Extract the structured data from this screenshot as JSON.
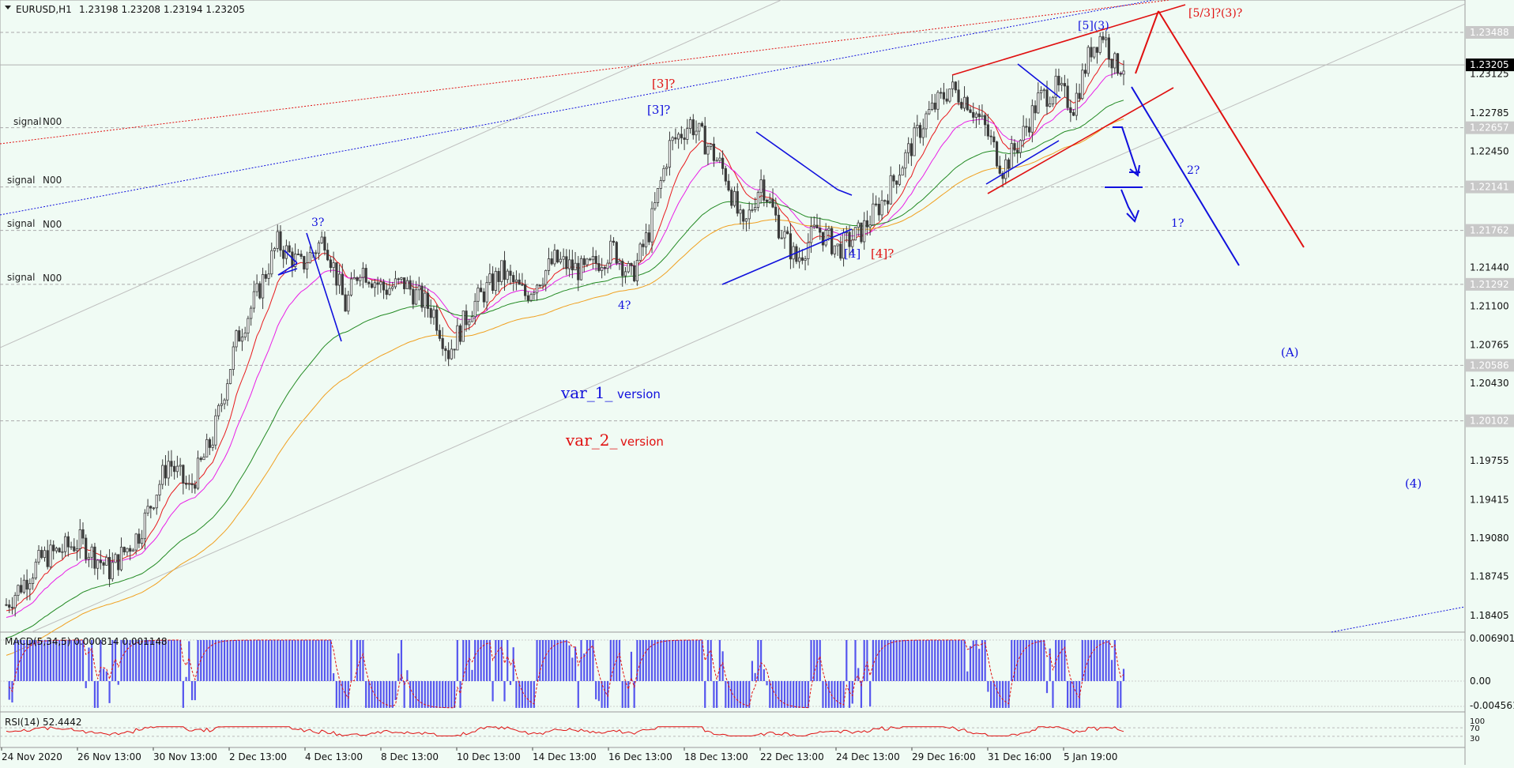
{
  "header": {
    "symbol": "EURUSD,H1",
    "ohlc": "1.23198 1.23208 1.23194 1.23205"
  },
  "colors": {
    "background": "#f0fbf4",
    "candle": "#3a3a3a",
    "ema_red": "#e8191c",
    "ema_magenta": "#e91ee6",
    "ema_orange": "#f0a020",
    "ema_green": "#238a23",
    "wave_blue": "#1010dd",
    "wave_red": "#e01010",
    "macd_hist": "#5555ee",
    "macd_signal": "#e01010",
    "rsi": "#e01010"
  },
  "signals": [
    {
      "label": "signal",
      "value": "N00"
    },
    {
      "label": "signal",
      "value": "N00"
    },
    {
      "label": "signal",
      "value": "N00"
    },
    {
      "label": "signal",
      "value": "N00"
    }
  ],
  "price_labels": [
    "1.23488",
    "1.23205",
    "1.23125",
    "1.22785",
    "1.22657",
    "1.22450",
    "1.22141",
    "1.21762",
    "1.21440",
    "1.21292",
    "1.21100",
    "1.20765",
    "1.20586",
    "1.20430",
    "1.20102",
    "1.19755",
    "1.19415",
    "1.19080",
    "1.18745",
    "1.18405"
  ],
  "current_price": "1.23205",
  "annotations": [
    {
      "text": "[5](3)",
      "color": "blue"
    },
    {
      "text": "[5/3]?(3)?",
      "color": "red"
    },
    {
      "text": "[3]?",
      "color": "red"
    },
    {
      "text": "[3]?",
      "color": "blue"
    },
    {
      "text": "3?",
      "color": "blue"
    },
    {
      "text": "4?",
      "color": "blue"
    },
    {
      "text": "[4]",
      "color": "blue"
    },
    {
      "text": "[4]?",
      "color": "red"
    },
    {
      "text": "2?",
      "color": "blue"
    },
    {
      "text": "1?",
      "color": "blue"
    },
    {
      "text": "(A)",
      "color": "blue"
    },
    {
      "text": "(4)",
      "color": "blue"
    }
  ],
  "versions": [
    {
      "name": "var_1_",
      "suffix": "version",
      "color": "blue"
    },
    {
      "name": "var_2_",
      "suffix": "version",
      "color": "red"
    }
  ],
  "macd": {
    "label": "MACD(5,34,5) 0.000814 0.001148",
    "levels": [
      "0.006901",
      "0.00",
      "-0.004561"
    ]
  },
  "rsi": {
    "label": "RSI(14) 52.4442",
    "levels": [
      "100",
      "70",
      "30"
    ]
  },
  "chart_data": {
    "type": "candlestick",
    "title": "EURUSD,H1",
    "ylim": [
      1.18405,
      1.23488
    ],
    "x_labels": [
      "24 Nov 2020",
      "26 Nov 13:00",
      "30 Nov 13:00",
      "2 Dec 13:00",
      "4 Dec 13:00",
      "8 Dec 13:00",
      "10 Dec 13:00",
      "14 Dec 13:00",
      "16 Dec 13:00",
      "18 Dec 13:00",
      "22 Dec 13:00",
      "24 Dec 13:00",
      "29 Dec 16:00",
      "31 Dec 16:00",
      "5 Jan 19:00"
    ],
    "price_path": [
      [
        0,
        1.185
      ],
      [
        12,
        1.189
      ],
      [
        25,
        1.1905
      ],
      [
        35,
        1.188
      ],
      [
        45,
        1.1912
      ],
      [
        55,
        1.1975
      ],
      [
        62,
        1.195
      ],
      [
        70,
        1.1995
      ],
      [
        78,
        1.208
      ],
      [
        85,
        1.212
      ],
      [
        92,
        1.2165
      ],
      [
        100,
        1.2145
      ],
      [
        108,
        1.217
      ],
      [
        115,
        1.211
      ],
      [
        120,
        1.2145
      ],
      [
        128,
        1.2125
      ],
      [
        135,
        1.213
      ],
      [
        145,
        1.2105
      ],
      [
        150,
        1.207
      ],
      [
        158,
        1.211
      ],
      [
        168,
        1.214
      ],
      [
        176,
        1.212
      ],
      [
        186,
        1.215
      ],
      [
        196,
        1.214
      ],
      [
        206,
        1.216
      ],
      [
        212,
        1.2135
      ],
      [
        218,
        1.2175
      ],
      [
        225,
        1.225
      ],
      [
        232,
        1.227
      ],
      [
        238,
        1.225
      ],
      [
        244,
        1.2225
      ],
      [
        250,
        1.2175
      ],
      [
        256,
        1.222
      ],
      [
        262,
        1.218
      ],
      [
        268,
        1.215
      ],
      [
        275,
        1.2178
      ],
      [
        282,
        1.216
      ],
      [
        290,
        1.2175
      ],
      [
        298,
        1.2205
      ],
      [
        305,
        1.224
      ],
      [
        312,
        1.2275
      ],
      [
        320,
        1.23
      ],
      [
        326,
        1.229
      ],
      [
        332,
        1.2265
      ],
      [
        338,
        1.223
      ],
      [
        344,
        1.2255
      ],
      [
        350,
        1.229
      ],
      [
        356,
        1.23
      ],
      [
        362,
        1.2285
      ],
      [
        368,
        1.2335
      ],
      [
        372,
        1.2348
      ],
      [
        376,
        1.232
      ],
      [
        379,
        1.232
      ]
    ],
    "ema_periods_shown": 4,
    "macd_series": [],
    "rsi_range": [
      30,
      70
    ]
  }
}
